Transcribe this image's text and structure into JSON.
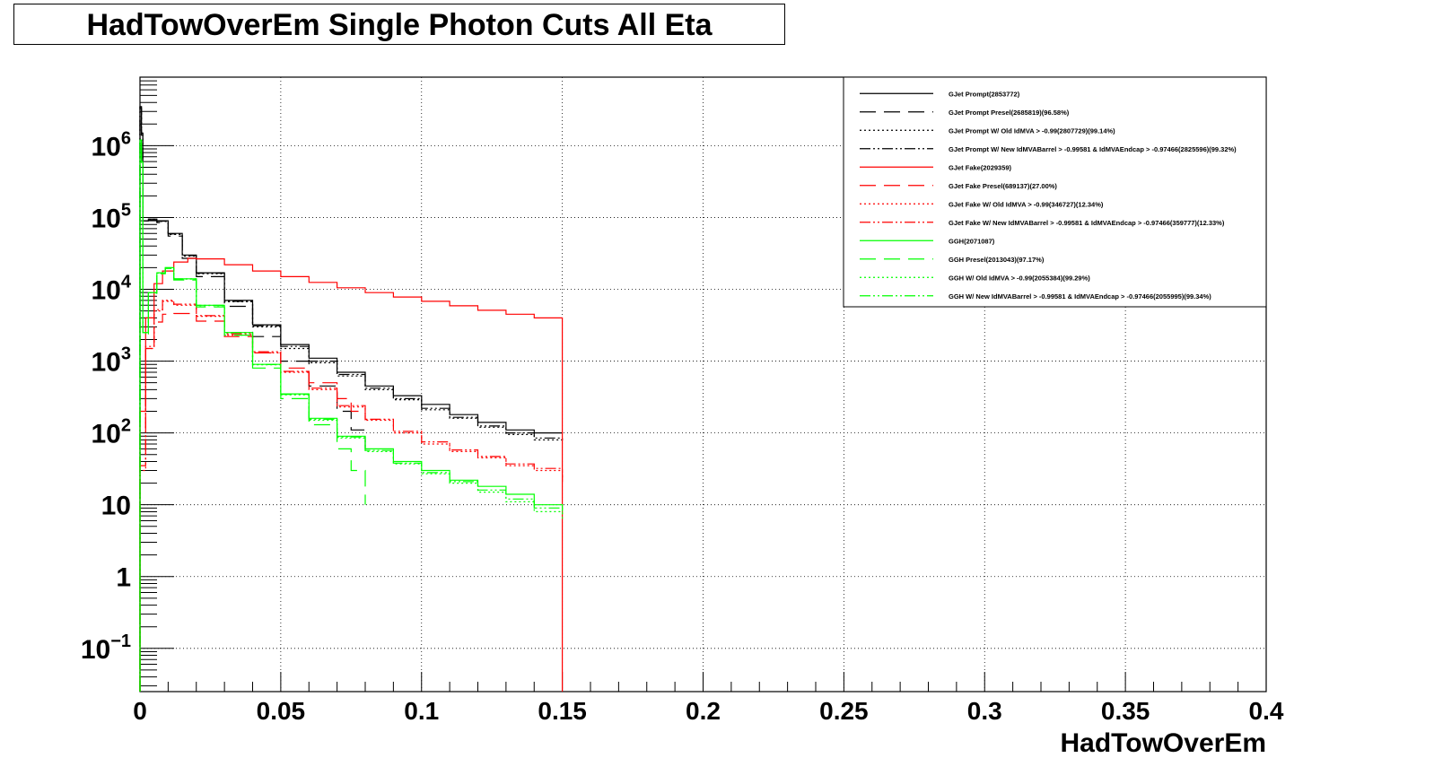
{
  "chart_data": {
    "type": "line",
    "title": "HadTowOverEm Single Photon Cuts All Eta",
    "xlabel": "HadTowOverEm",
    "ylabel": "",
    "xlim": [
      0,
      0.4
    ],
    "ylim": [
      0.025,
      9000000
    ],
    "yscale": "log",
    "grid": true,
    "legend_position": "top-right",
    "x_ticks": [
      {
        "value": 0,
        "label": "0"
      },
      {
        "value": 0.05,
        "label": "0.05"
      },
      {
        "value": 0.1,
        "label": "0.1"
      },
      {
        "value": 0.15,
        "label": "0.15"
      },
      {
        "value": 0.2,
        "label": "0.2"
      },
      {
        "value": 0.25,
        "label": "0.25"
      },
      {
        "value": 0.3,
        "label": "0.3"
      },
      {
        "value": 0.35,
        "label": "0.35"
      },
      {
        "value": 0.4,
        "label": "0.4"
      }
    ],
    "y_ticks": [
      {
        "value": 0.1,
        "base": "10",
        "exp": "−1"
      },
      {
        "value": 1,
        "base": "1",
        "exp": ""
      },
      {
        "value": 10,
        "base": "10",
        "exp": ""
      },
      {
        "value": 100,
        "base": "10",
        "exp": "2"
      },
      {
        "value": 1000,
        "base": "10",
        "exp": "3"
      },
      {
        "value": 10000,
        "base": "10",
        "exp": "4"
      },
      {
        "value": 100000,
        "base": "10",
        "exp": "5"
      },
      {
        "value": 1000000,
        "base": "10",
        "exp": "6"
      }
    ],
    "series": [
      {
        "name": "GJet Prompt(2853772)",
        "color": "#000000",
        "dash": "solid",
        "points": [
          [
            0.0,
            3500000
          ],
          [
            0.0005,
            1500000
          ],
          [
            0.001,
            90000
          ],
          [
            0.003,
            95000
          ],
          [
            0.006,
            90000
          ],
          [
            0.01,
            60000
          ],
          [
            0.015,
            30000
          ],
          [
            0.02,
            17000
          ],
          [
            0.03,
            7000
          ],
          [
            0.04,
            3200
          ],
          [
            0.05,
            1700
          ],
          [
            0.06,
            1100
          ],
          [
            0.07,
            700
          ],
          [
            0.08,
            450
          ],
          [
            0.09,
            330
          ],
          [
            0.1,
            250
          ],
          [
            0.11,
            180
          ],
          [
            0.12,
            140
          ],
          [
            0.13,
            110
          ],
          [
            0.14,
            100
          ],
          [
            0.15,
            100
          ]
        ]
      },
      {
        "name": "GJet Prompt Presel(2685819)(96.58%)",
        "color": "#000000",
        "dash": "18,9",
        "points": [
          [
            0.0,
            3300000
          ],
          [
            0.0005,
            1400000
          ],
          [
            0.001,
            90000
          ],
          [
            0.003,
            92000
          ],
          [
            0.006,
            85000
          ],
          [
            0.01,
            55000
          ],
          [
            0.015,
            27000
          ],
          [
            0.02,
            15000
          ],
          [
            0.03,
            5800
          ],
          [
            0.04,
            2200
          ],
          [
            0.05,
            1000
          ],
          [
            0.06,
            450
          ],
          [
            0.07,
            200
          ],
          [
            0.075,
            110
          ],
          [
            0.08,
            60
          ]
        ]
      },
      {
        "name": "GJet Prompt W/ Old IdMVA > -0.99(2807729)(99.14%)",
        "color": "#000000",
        "dash": "2,3",
        "points": [
          [
            0.0,
            3450000
          ],
          [
            0.0005,
            1480000
          ],
          [
            0.001,
            90000
          ],
          [
            0.003,
            94000
          ],
          [
            0.006,
            88000
          ],
          [
            0.01,
            58000
          ],
          [
            0.015,
            29000
          ],
          [
            0.02,
            16500
          ],
          [
            0.03,
            6700
          ],
          [
            0.04,
            3000
          ],
          [
            0.05,
            1500
          ],
          [
            0.06,
            950
          ],
          [
            0.07,
            620
          ],
          [
            0.08,
            400
          ],
          [
            0.09,
            290
          ],
          [
            0.1,
            210
          ],
          [
            0.11,
            160
          ],
          [
            0.12,
            120
          ],
          [
            0.13,
            95
          ],
          [
            0.14,
            80
          ],
          [
            0.15,
            75
          ]
        ]
      },
      {
        "name": "GJet Prompt W/ New IdMVABarrel > -0.99581 & IdMVAEndcap > -0.97466(2825596)(99.32%)",
        "color": "#000000",
        "dash": "12,3,2,3,2,3",
        "points": [
          [
            0.0,
            3460000
          ],
          [
            0.0005,
            1490000
          ],
          [
            0.001,
            90000
          ],
          [
            0.003,
            94500
          ],
          [
            0.006,
            89000
          ],
          [
            0.01,
            59000
          ],
          [
            0.015,
            29500
          ],
          [
            0.02,
            16800
          ],
          [
            0.03,
            6800
          ],
          [
            0.04,
            3100
          ],
          [
            0.05,
            1600
          ],
          [
            0.06,
            1000
          ],
          [
            0.07,
            650
          ],
          [
            0.08,
            420
          ],
          [
            0.09,
            300
          ],
          [
            0.1,
            220
          ],
          [
            0.11,
            165
          ],
          [
            0.12,
            125
          ],
          [
            0.13,
            100
          ],
          [
            0.14,
            85
          ],
          [
            0.15,
            80
          ]
        ]
      },
      {
        "name": "GJet Fake(2029359)",
        "color": "#ff0000",
        "dash": "solid",
        "points": [
          [
            0.0,
            200
          ],
          [
            0.002,
            4000
          ],
          [
            0.005,
            12000
          ],
          [
            0.008,
            18000
          ],
          [
            0.012,
            24000
          ],
          [
            0.017,
            27000
          ],
          [
            0.02,
            26500
          ],
          [
            0.03,
            22000
          ],
          [
            0.04,
            18000
          ],
          [
            0.05,
            15000
          ],
          [
            0.06,
            12500
          ],
          [
            0.07,
            10500
          ],
          [
            0.08,
            9000
          ],
          [
            0.09,
            7800
          ],
          [
            0.1,
            6800
          ],
          [
            0.11,
            5900
          ],
          [
            0.12,
            5100
          ],
          [
            0.13,
            4500
          ],
          [
            0.14,
            4000
          ],
          [
            0.15,
            3600
          ]
        ]
      },
      {
        "name": "GJet Fake Presel(689137)(27.00%)",
        "color": "#ff0000",
        "dash": "18,9",
        "points": [
          [
            0.0,
            50
          ],
          [
            0.002,
            1500
          ],
          [
            0.005,
            3500
          ],
          [
            0.008,
            4500
          ],
          [
            0.012,
            4600
          ],
          [
            0.02,
            3600
          ],
          [
            0.03,
            2200
          ],
          [
            0.04,
            1300
          ],
          [
            0.05,
            800
          ],
          [
            0.06,
            500
          ],
          [
            0.07,
            300
          ],
          [
            0.075,
            200
          ],
          [
            0.08,
            150
          ]
        ]
      },
      {
        "name": "GJet Fake W/ Old IdMVA > -0.99(346727)(12.34%)",
        "color": "#ff0000",
        "dash": "2,3",
        "points": [
          [
            0.0,
            30
          ],
          [
            0.002,
            1500
          ],
          [
            0.005,
            5000
          ],
          [
            0.008,
            6800
          ],
          [
            0.012,
            6000
          ],
          [
            0.02,
            4200
          ],
          [
            0.03,
            2300
          ],
          [
            0.04,
            1300
          ],
          [
            0.05,
            700
          ],
          [
            0.06,
            400
          ],
          [
            0.07,
            230
          ],
          [
            0.08,
            150
          ],
          [
            0.09,
            100
          ],
          [
            0.1,
            70
          ],
          [
            0.11,
            55
          ],
          [
            0.12,
            45
          ],
          [
            0.13,
            35
          ],
          [
            0.14,
            30
          ],
          [
            0.15,
            20
          ]
        ]
      },
      {
        "name": "GJet Fake W/ New IdMVABarrel > -0.99581 & IdMVAEndcap > -0.97466(359777)(12.33%)",
        "color": "#ff0000",
        "dash": "12,3,2,3,2,3",
        "points": [
          [
            0.0,
            35
          ],
          [
            0.002,
            1600
          ],
          [
            0.005,
            5200
          ],
          [
            0.008,
            7000
          ],
          [
            0.012,
            6200
          ],
          [
            0.02,
            4300
          ],
          [
            0.03,
            2400
          ],
          [
            0.04,
            1350
          ],
          [
            0.05,
            720
          ],
          [
            0.06,
            420
          ],
          [
            0.07,
            240
          ],
          [
            0.08,
            155
          ],
          [
            0.09,
            105
          ],
          [
            0.1,
            75
          ],
          [
            0.11,
            58
          ],
          [
            0.12,
            47
          ],
          [
            0.13,
            37
          ],
          [
            0.14,
            32
          ],
          [
            0.15,
            22
          ]
        ]
      },
      {
        "name": "GGH(2071087)",
        "color": "#00ff00",
        "dash": "solid",
        "points": [
          [
            0.0,
            1200000
          ],
          [
            0.0005,
            600000
          ],
          [
            0.001,
            2500
          ],
          [
            0.003,
            9000
          ],
          [
            0.006,
            17000
          ],
          [
            0.009,
            20000
          ],
          [
            0.012,
            14000
          ],
          [
            0.02,
            6000
          ],
          [
            0.03,
            2500
          ],
          [
            0.04,
            900
          ],
          [
            0.05,
            350
          ],
          [
            0.06,
            160
          ],
          [
            0.07,
            90
          ],
          [
            0.08,
            60
          ],
          [
            0.09,
            40
          ],
          [
            0.1,
            30
          ],
          [
            0.11,
            22
          ],
          [
            0.12,
            18
          ],
          [
            0.13,
            14
          ],
          [
            0.14,
            10
          ],
          [
            0.15,
            8
          ]
        ]
      },
      {
        "name": "GGH Presel(2013043)(97.17%)",
        "color": "#00ff00",
        "dash": "18,9",
        "points": [
          [
            0.0,
            1150000
          ],
          [
            0.0005,
            580000
          ],
          [
            0.001,
            2400
          ],
          [
            0.003,
            8800
          ],
          [
            0.006,
            16500
          ],
          [
            0.009,
            19500
          ],
          [
            0.012,
            13500
          ],
          [
            0.02,
            5700
          ],
          [
            0.03,
            2300
          ],
          [
            0.04,
            800
          ],
          [
            0.05,
            300
          ],
          [
            0.06,
            130
          ],
          [
            0.07,
            60
          ],
          [
            0.075,
            30
          ],
          [
            0.08,
            10
          ]
        ]
      },
      {
        "name": "GGH W/ Old IdMVA > -0.99(2055384)(99.29%)",
        "color": "#00ff00",
        "dash": "2,3",
        "points": [
          [
            0.0,
            1190000
          ],
          [
            0.0005,
            595000
          ],
          [
            0.001,
            2480
          ],
          [
            0.003,
            8950
          ],
          [
            0.006,
            16900
          ],
          [
            0.009,
            19900
          ],
          [
            0.012,
            13900
          ],
          [
            0.02,
            5950
          ],
          [
            0.03,
            2480
          ],
          [
            0.04,
            890
          ],
          [
            0.05,
            340
          ],
          [
            0.06,
            150
          ],
          [
            0.07,
            85
          ],
          [
            0.08,
            55
          ],
          [
            0.09,
            37
          ],
          [
            0.1,
            27
          ],
          [
            0.11,
            20
          ],
          [
            0.12,
            15
          ],
          [
            0.13,
            11
          ],
          [
            0.14,
            8
          ],
          [
            0.15,
            6
          ]
        ]
      },
      {
        "name": "GGH W/ New IdMVABarrel > -0.99581 & IdMVAEndcap > -0.97466(2055995)(99.34%)",
        "color": "#00ff00",
        "dash": "12,3,2,3,2,3",
        "points": [
          [
            0.0,
            1195000
          ],
          [
            0.0005,
            597000
          ],
          [
            0.001,
            2490
          ],
          [
            0.003,
            8970
          ],
          [
            0.006,
            16950
          ],
          [
            0.009,
            19950
          ],
          [
            0.012,
            13950
          ],
          [
            0.02,
            5970
          ],
          [
            0.03,
            2490
          ],
          [
            0.04,
            895
          ],
          [
            0.05,
            345
          ],
          [
            0.06,
            155
          ],
          [
            0.07,
            88
          ],
          [
            0.08,
            57
          ],
          [
            0.09,
            38
          ],
          [
            0.1,
            28
          ],
          [
            0.11,
            21
          ],
          [
            0.12,
            16
          ],
          [
            0.13,
            12
          ],
          [
            0.14,
            9
          ],
          [
            0.15,
            7
          ]
        ]
      }
    ]
  }
}
